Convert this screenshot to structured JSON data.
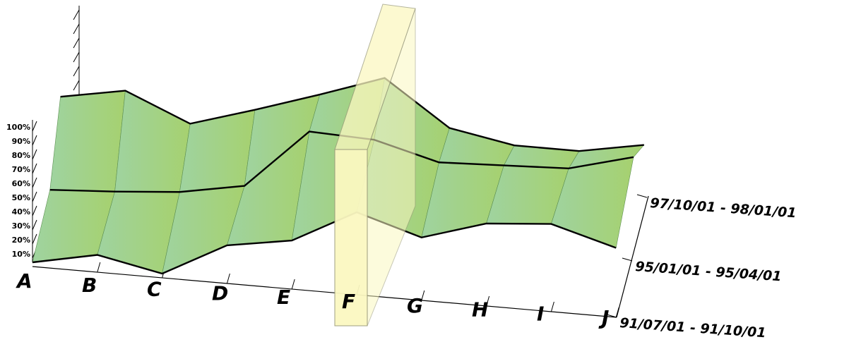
{
  "chart_data": {
    "type": "area",
    "subtype": "3d-ribbon",
    "categories": [
      "A",
      "B",
      "C",
      "D",
      "E",
      "F",
      "G",
      "H",
      "I",
      "J"
    ],
    "series": [
      {
        "name": "91/07/01 - 91/10/01",
        "values": [
          0,
          10,
          0,
          26,
          34,
          60,
          45,
          60,
          64,
          50
        ]
      },
      {
        "name": "95/01/01 - 95/04/01",
        "values": [
          30,
          33,
          37,
          46,
          92,
          90,
          77,
          79,
          81,
          94
        ]
      },
      {
        "name": "97/10/01 - 98/01/01",
        "values": [
          86,
          95,
          74,
          89,
          105,
          122,
          88,
          79,
          79,
          88
        ]
      }
    ],
    "y_ticks": [
      "10%",
      "20%",
      "30%",
      "40%",
      "50%",
      "60%",
      "70%",
      "80%",
      "90%",
      "100%"
    ],
    "highlight_category": "F",
    "colors": {
      "ribbon_a": "#9fd3a0",
      "ribbon_b": "#a6d16f",
      "highlight_bar": "#fbf8c1",
      "axis": "#000000"
    }
  }
}
